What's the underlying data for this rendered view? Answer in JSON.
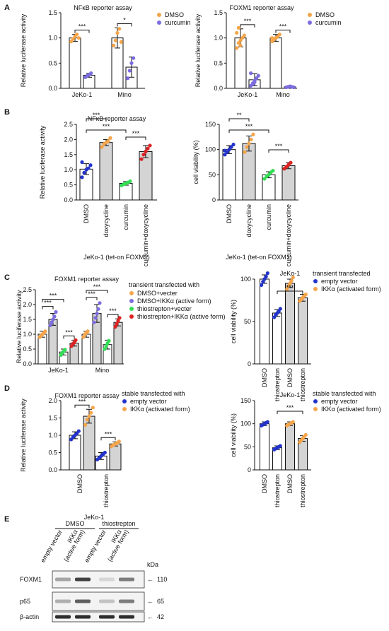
{
  "panels": {
    "A": "A",
    "B": "B",
    "C": "C",
    "D": "D",
    "E": "E"
  },
  "colors": {
    "dmso_orange": "#f5a54a",
    "curcumin_purple": "#7b6cdf",
    "blue": "#2233cc",
    "green": "#33dd55",
    "red": "#dd2222",
    "bar_white": "#ffffff",
    "bar_gray": "#d4d4d4"
  },
  "chart_data": [
    {
      "id": "A1",
      "type": "bar",
      "title": "NFκB reporter assay",
      "xlabel": "",
      "ylabel": "Relative luciferase activity",
      "ylim": [
        0,
        1.5
      ],
      "yticks": [
        "0.0",
        "0.5",
        "1.0",
        "1.5"
      ],
      "categories": [
        "JeKo-1",
        "Mino"
      ],
      "series": [
        {
          "name": "DMSO",
          "values": [
            1.0,
            1.0
          ],
          "errors": [
            0.07,
            0.2
          ],
          "points": [
            [
              0.93,
              0.98,
              1.03,
              1.07,
              1.0
            ],
            [
              0.85,
              0.95,
              1.1,
              1.18,
              0.92
            ]
          ]
        },
        {
          "name": "curcumin",
          "values": [
            0.26,
            0.42
          ],
          "errors": [
            0.04,
            0.2
          ],
          "points": [
            [
              0.22,
              0.25,
              0.27,
              0.3
            ],
            [
              0.2,
              0.35,
              0.5,
              0.6
            ]
          ]
        }
      ],
      "significance": [
        {
          "group": "JeKo-1",
          "label": "***"
        },
        {
          "group": "Mino",
          "label": "*"
        }
      ]
    },
    {
      "id": "A2",
      "type": "bar",
      "title": "FOXM1 reporter assay",
      "xlabel": "",
      "ylabel": "Relative luciferase activity",
      "ylim": [
        0,
        1.5
      ],
      "yticks": [
        "0.0",
        "0.5",
        "1.0",
        "1.5"
      ],
      "categories": [
        "JeKo-1",
        "Mino"
      ],
      "series": [
        {
          "name": "DMSO",
          "values": [
            1.0,
            1.0
          ],
          "errors": [
            0.18,
            0.07
          ],
          "points": [
            [
              0.8,
              0.9,
              0.95,
              1.0,
              1.05,
              1.1,
              1.2,
              0.85
            ],
            [
              0.93,
              0.97,
              1.0,
              1.03,
              1.07,
              1.0
            ]
          ]
        },
        {
          "name": "curcumin",
          "values": [
            0.17,
            0.03
          ],
          "errors": [
            0.12,
            0.01
          ],
          "points": [
            [
              0.05,
              0.1,
              0.15,
              0.2,
              0.25,
              0.3,
              0.08,
              0.12
            ],
            [
              0.02,
              0.03,
              0.04,
              0.03,
              0.02
            ]
          ]
        }
      ],
      "significance": [
        {
          "group": "JeKo-1",
          "label": "***"
        },
        {
          "group": "Mino",
          "label": "***"
        }
      ]
    },
    {
      "id": "B1",
      "type": "bar",
      "title": "NFκB reporter assay",
      "xlabel": "JeKo-1 (tet-on FOXM1)",
      "ylabel": "Relative luciferase activity",
      "ylim": [
        0,
        2.5
      ],
      "yticks": [
        "0.0",
        "0.5",
        "1.0",
        "1.5",
        "2.0",
        "2.5"
      ],
      "categories": [
        "DMSO",
        "doxycycline",
        "curcumin",
        "curcumin+doxycycline"
      ],
      "bar_fill": [
        "white",
        "gray",
        "white",
        "gray"
      ],
      "point_color": [
        "blue",
        "orange",
        "green",
        "red"
      ],
      "values": [
        1.02,
        1.9,
        0.55,
        1.6
      ],
      "errors": [
        0.18,
        0.1,
        0.06,
        0.2
      ],
      "points": [
        [
          0.75,
          0.9,
          1.0,
          1.05,
          1.15,
          1.25
        ],
        [
          1.75,
          1.85,
          1.9,
          1.95,
          2.05
        ],
        [
          0.48,
          0.52,
          0.55,
          0.58,
          0.62
        ],
        [
          1.35,
          1.5,
          1.6,
          1.7,
          1.8
        ]
      ],
      "significance": [
        {
          "from": 0,
          "to": 1,
          "label": "***"
        },
        {
          "from": 0,
          "to": 2,
          "label": "***"
        },
        {
          "from": 2,
          "to": 3,
          "label": "***"
        }
      ]
    },
    {
      "id": "B2",
      "type": "bar",
      "title": "",
      "xlabel": "JeKo-1 (tet-on FOXM1)",
      "ylabel": "cell viability (%)",
      "ylim": [
        0,
        150
      ],
      "yticks": [
        "0",
        "50",
        "100",
        "150"
      ],
      "categories": [
        "DMSO",
        "doxycycline",
        "curcumin",
        "curcumin+doxycycline"
      ],
      "bar_fill": [
        "white",
        "gray",
        "white",
        "gray"
      ],
      "point_color": [
        "blue",
        "orange",
        "green",
        "red"
      ],
      "values": [
        100,
        112,
        50,
        68
      ],
      "errors": [
        8,
        15,
        6,
        6
      ],
      "points": [
        [
          90,
          95,
          100,
          105,
          110,
          98
        ],
        [
          95,
          105,
          112,
          120,
          130
        ],
        [
          42,
          47,
          50,
          55,
          58
        ],
        [
          62,
          66,
          70,
          74
        ]
      ],
      "significance": [
        {
          "from": 0,
          "to": 1,
          "label": "**"
        },
        {
          "from": 0,
          "to": 2,
          "label": "***"
        },
        {
          "from": 2,
          "to": 3,
          "label": "***"
        }
      ]
    },
    {
      "id": "C1",
      "type": "bar",
      "title": "FOXM1 reporter assay",
      "xlabel": "",
      "ylabel": "Relative luciferase activity",
      "ylim": [
        0,
        2.5
      ],
      "yticks": [
        "0.0",
        "0.5",
        "1.0",
        "1.5",
        "2.0",
        "2.5"
      ],
      "categories": [
        "JeKo-1",
        "Mino"
      ],
      "legend_title": "transient transfected with",
      "series": [
        {
          "name": "DMSO+vecter",
          "color": "orange",
          "fill": "white",
          "values": [
            1.0,
            1.0
          ],
          "errors": [
            0.1,
            0.1
          ],
          "points": [
            [
              0.9,
              0.95,
              1.0,
              1.05,
              1.1
            ],
            [
              0.9,
              1.0,
              1.05,
              1.1
            ]
          ]
        },
        {
          "name": "DMSO+IKKα (active form)",
          "color": "purple",
          "fill": "gray",
          "values": [
            1.5,
            1.7
          ],
          "errors": [
            0.2,
            0.3
          ],
          "points": [
            [
              1.3,
              1.4,
              1.5,
              1.6,
              1.75
            ],
            [
              1.4,
              1.55,
              1.7,
              1.85,
              2.05
            ]
          ]
        },
        {
          "name": "thiostrepton+vecter",
          "color": "green",
          "fill": "white",
          "values": [
            0.4,
            0.65
          ],
          "errors": [
            0.1,
            0.15
          ],
          "points": [
            [
              0.3,
              0.38,
              0.42,
              0.48
            ],
            [
              0.5,
              0.6,
              0.7,
              0.78
            ]
          ]
        },
        {
          "name": "thiostrepton+IKKα (active form)",
          "color": "red",
          "fill": "gray",
          "values": [
            0.7,
            1.4
          ],
          "errors": [
            0.1,
            0.12
          ],
          "points": [
            [
              0.6,
              0.68,
              0.72,
              0.8
            ],
            [
              1.25,
              1.35,
              1.45,
              1.55
            ]
          ]
        }
      ],
      "significance": [
        {
          "group": "JeKo-1",
          "pairs": [
            "***",
            "***",
            "***"
          ]
        },
        {
          "group": "Mino",
          "pairs": [
            "***",
            "***",
            "***"
          ]
        }
      ]
    },
    {
      "id": "C2",
      "type": "bar",
      "title": "JeKo-1",
      "xlabel": "",
      "ylabel": "cell viability (%)",
      "ylim": [
        0,
        100
      ],
      "yticks": [
        "0",
        "50",
        "100"
      ],
      "categories": [
        "DMSO",
        "thiostrepton",
        "DMSO",
        "thiostrepton"
      ],
      "legend_title": "transient transfected",
      "legend": [
        "empty vector",
        "IKKα (activated form)"
      ],
      "bar_fill": [
        "white",
        "white",
        "gray",
        "gray"
      ],
      "point_color": [
        "blue",
        "blue",
        "orange",
        "orange"
      ],
      "values": [
        100,
        60,
        95,
        78
      ],
      "errors": [
        5,
        4,
        5,
        4
      ],
      "points": [
        [
          93,
          97,
          100,
          103,
          107
        ],
        [
          55,
          58,
          60,
          62,
          65
        ],
        [
          88,
          92,
          95,
          98,
          102
        ],
        [
          74,
          76,
          78,
          80,
          82
        ]
      ],
      "significance": [
        {
          "from": 1,
          "to": 3,
          "label": "***"
        }
      ]
    },
    {
      "id": "D1",
      "type": "bar",
      "title": "FOXM1 reporter assay",
      "xlabel": "JeKo-1",
      "ylabel": "Relative luciferase activity",
      "ylim": [
        0,
        2.0
      ],
      "yticks": [
        "0.0",
        "0.5",
        "1.0",
        "1.5",
        "2.0"
      ],
      "categories": [
        "DMSO",
        "thiostrepton"
      ],
      "legend_title": "stable transfected with",
      "series": [
        {
          "name": "empty vector",
          "color": "blue",
          "fill": "white",
          "values": [
            1.0,
            0.4
          ],
          "errors": [
            0.1,
            0.1
          ],
          "points": [
            [
              0.88,
              0.95,
              1.0,
              1.05,
              1.12
            ],
            [
              0.3,
              0.35,
              0.4,
              0.45,
              0.5
            ]
          ]
        },
        {
          "name": "IKKα (activated form)",
          "color": "orange",
          "fill": "gray",
          "values": [
            1.55,
            0.75
          ],
          "errors": [
            0.2,
            0.06
          ],
          "points": [
            [
              1.3,
              1.45,
              1.55,
              1.65,
              1.8
            ],
            [
              0.68,
              0.72,
              0.75,
              0.78,
              0.82
            ]
          ]
        }
      ],
      "significance": [
        {
          "group": "DMSO",
          "label": "***"
        },
        {
          "group": "thiostrepton",
          "label": "***"
        }
      ]
    },
    {
      "id": "D2",
      "type": "bar",
      "title": "JeKo-1",
      "xlabel": "",
      "ylabel": "cell viability (%)",
      "ylim": [
        0,
        150
      ],
      "yticks": [
        "0",
        "50",
        "100",
        "150"
      ],
      "categories": [
        "DMSO",
        "thiostrepton",
        "DMSO",
        "thiostrepton"
      ],
      "legend_title": "stable transfected with",
      "legend": [
        "empty vector",
        "IKKα (activated form)"
      ],
      "bar_fill": [
        "white",
        "white",
        "gray",
        "gray"
      ],
      "point_color": [
        "blue",
        "blue",
        "orange",
        "orange"
      ],
      "values": [
        100,
        48,
        100,
        68
      ],
      "errors": [
        4,
        4,
        4,
        6
      ],
      "points": [
        [
          96,
          98,
          100,
          102,
          104
        ],
        [
          44,
          46,
          48,
          50,
          52
        ],
        [
          96,
          98,
          100,
          102,
          104
        ],
        [
          60,
          64,
          68,
          72,
          76
        ]
      ],
      "significance": [
        {
          "from": 1,
          "to": 3,
          "label": "***"
        }
      ]
    }
  ],
  "western_blot": {
    "group_labels": [
      "DMSO",
      "thiostrepton"
    ],
    "lane_labels": [
      "empty vector",
      "IKKα",
      "(active form)",
      "empty vector",
      "IKKα",
      "(active form)"
    ],
    "rows": [
      {
        "label": "FOXM1",
        "marker": "110",
        "intensity": [
          0.35,
          0.85,
          0.1,
          0.55
        ]
      },
      {
        "label": "p65",
        "marker": "65",
        "intensity": [
          0.3,
          0.7,
          0.2,
          0.55
        ]
      },
      {
        "label": "β-actin",
        "marker": "42",
        "intensity": [
          0.95,
          0.95,
          0.95,
          0.95
        ]
      }
    ],
    "kda": "kDa"
  }
}
